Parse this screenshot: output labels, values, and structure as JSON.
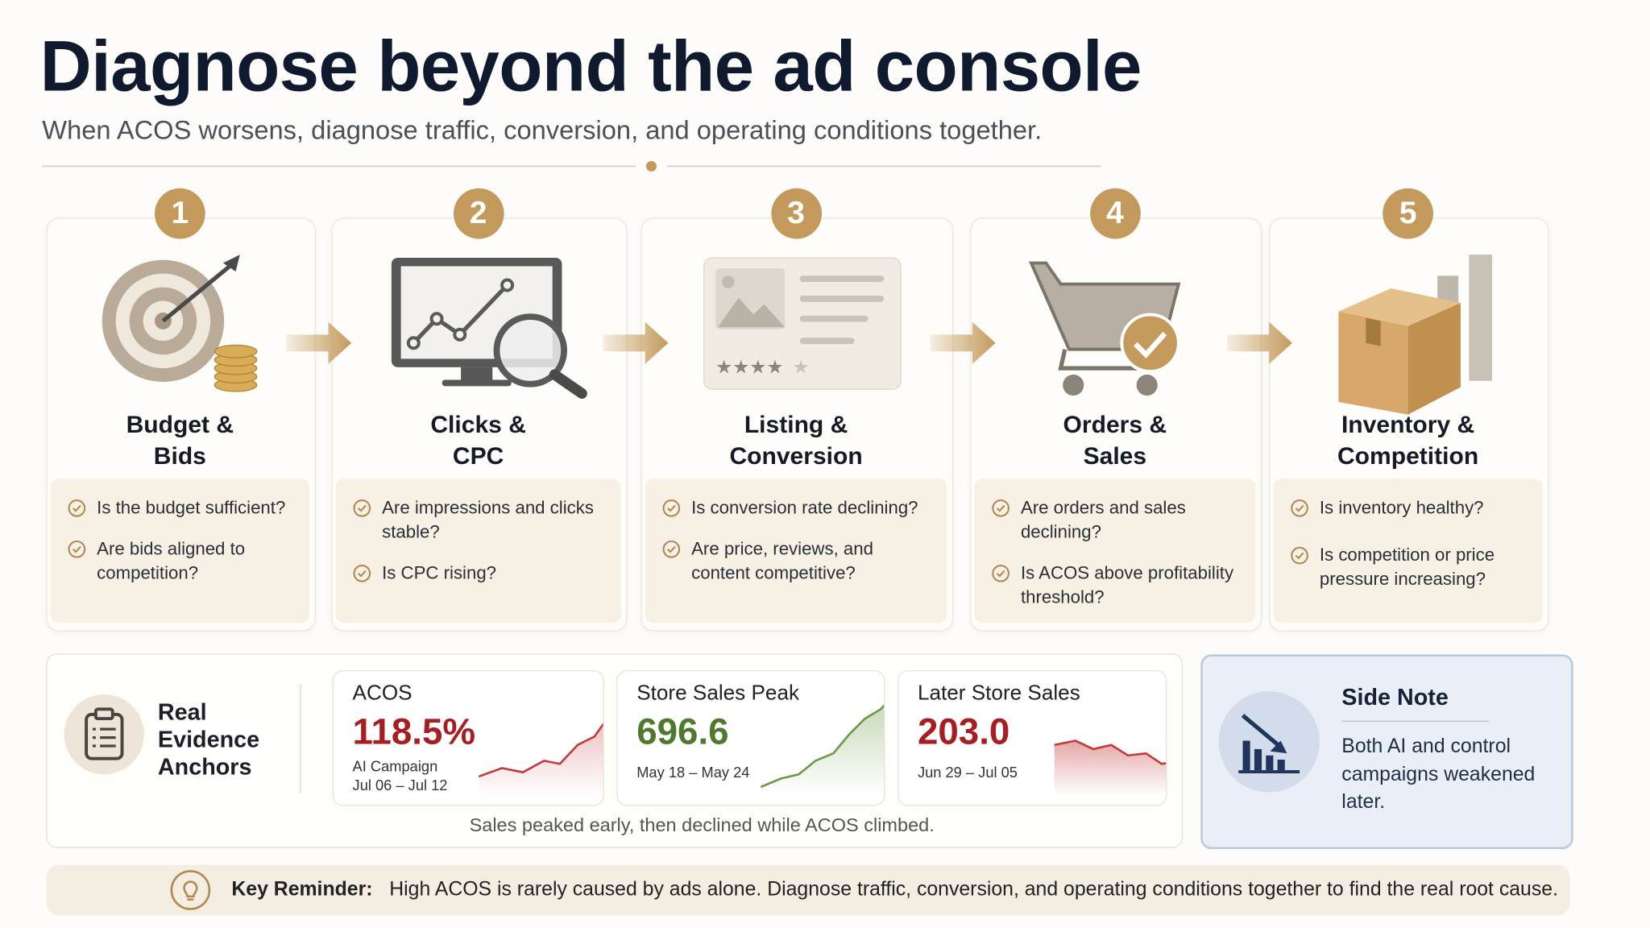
{
  "header": {
    "title": "Diagnose beyond the ad console",
    "subtitle": "When ACOS worsens, diagnose traffic, conversion, and operating conditions together."
  },
  "steps": [
    {
      "number": "1",
      "title_lines": [
        "Budget &",
        "Bids"
      ],
      "questions": [
        "Is the budget sufficient?",
        "Are bids aligned to competition?"
      ]
    },
    {
      "number": "2",
      "title_lines": [
        "Clicks &",
        "CPC"
      ],
      "questions": [
        "Are impressions and clicks stable?",
        "Is CPC rising?"
      ]
    },
    {
      "number": "3",
      "title_lines": [
        "Listing &",
        "Conversion"
      ],
      "questions": [
        "Is conversion rate declining?",
        "Are price, reviews, and content competitive?"
      ]
    },
    {
      "number": "4",
      "title_lines": [
        "Orders &",
        "Sales"
      ],
      "questions": [
        "Are orders and sales declining?",
        "Is ACOS above profitability threshold?"
      ]
    },
    {
      "number": "5",
      "title_lines": [
        "Inventory &",
        "Competition"
      ],
      "questions": [
        "Is inventory healthy?",
        "Is competition or price pressure increasing?"
      ]
    }
  ],
  "evidence": {
    "title": "Real Evidence Anchors",
    "metrics": [
      {
        "label": "ACOS",
        "value": "118.5%",
        "sub": [
          "AI Campaign",
          "Jul 06 – Jul 12"
        ]
      },
      {
        "label": "Store Sales Peak",
        "value": "696.6",
        "sub": [
          "May 18 – May 24"
        ]
      },
      {
        "label": "Later Store Sales",
        "value": "203.0",
        "sub": [
          "Jun 29 – Jul 05"
        ]
      }
    ],
    "caption": "Sales peaked early, then declined while ACOS climbed."
  },
  "side_note": {
    "title": "Side Note",
    "text": "Both AI and control campaigns weakened later."
  },
  "reminder": {
    "label": "Key Reminder:",
    "text": "High ACOS is rarely caused by ads alone. Diagnose traffic, conversion, and operating conditions together to find the real root cause."
  }
}
